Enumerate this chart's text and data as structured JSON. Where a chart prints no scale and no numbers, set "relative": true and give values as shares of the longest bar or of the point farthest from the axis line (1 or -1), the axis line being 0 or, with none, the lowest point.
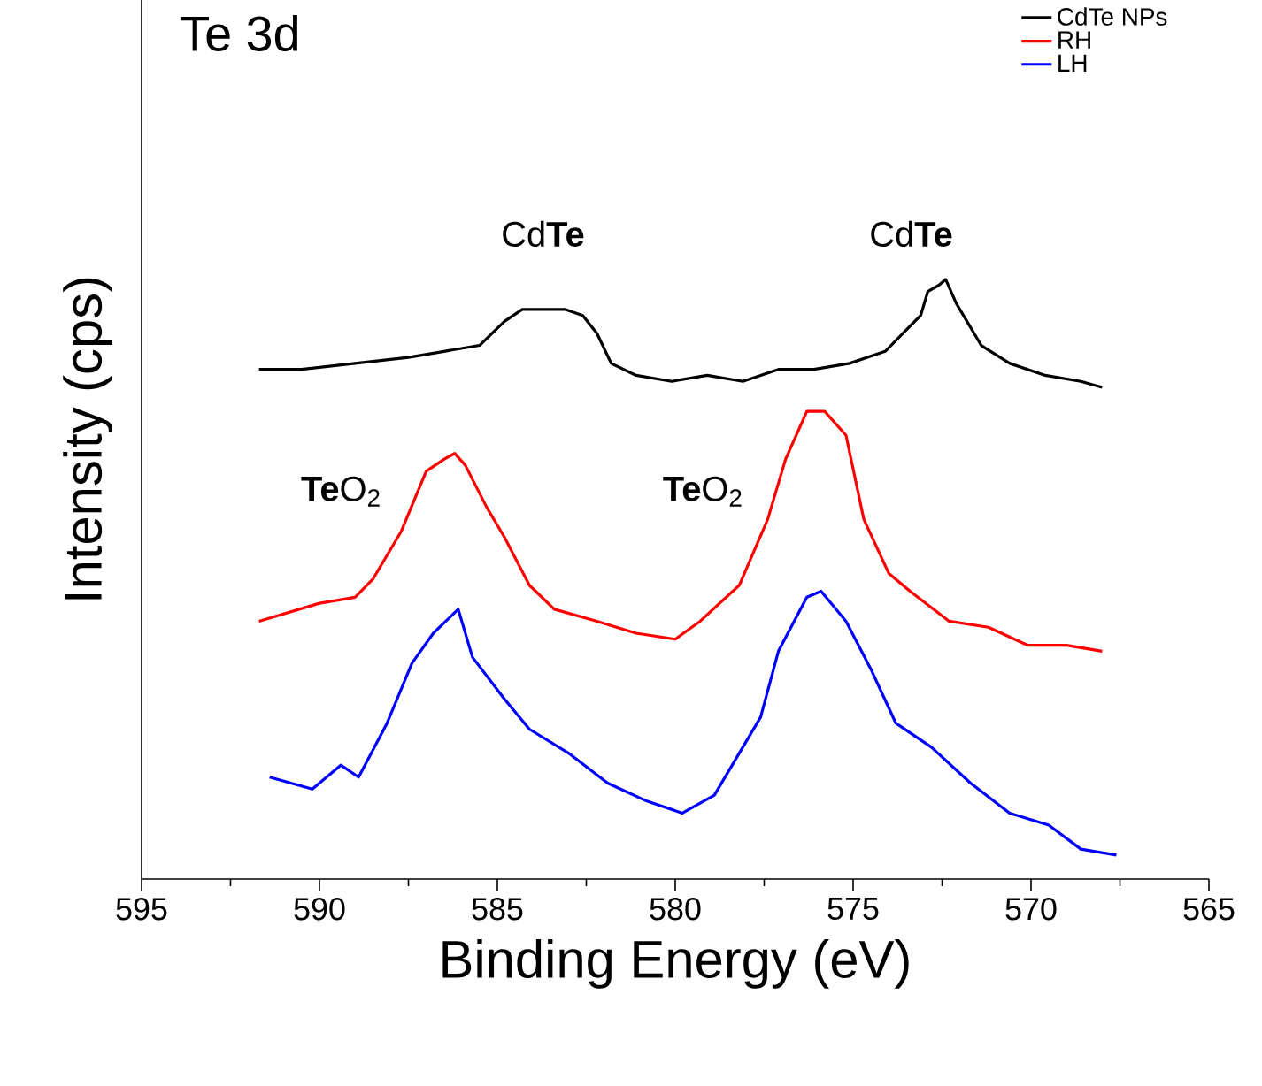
{
  "chart_data": {
    "type": "line",
    "xlabel": "Binding Energy (eV)",
    "ylabel": "Intensity (cps)",
    "relative": true,
    "xlim": [
      595,
      565
    ],
    "xticks": [
      595,
      590,
      585,
      580,
      575,
      570,
      565
    ],
    "legend": "top right",
    "marker": "none",
    "line_style": "solid",
    "annotations": [
      "Te 3d",
      "Cd**Te**",
      "Cd**Te**",
      "**Te**O$_{2}$",
      "**Te**O$_{2}$"
    ],
    "series": [
      {
        "name": "CdTe NPs",
        "color": "#000000",
        "x": [
          591.7,
          590.5,
          589.0,
          587.5,
          586.5,
          585.5,
          584.8,
          584.3,
          583.6,
          583.1,
          582.6,
          582.2,
          581.8,
          581.1,
          580.1,
          579.1,
          578.1,
          577.1,
          576.1,
          575.1,
          574.1,
          573.6,
          573.1,
          572.9,
          572.6,
          572.4,
          572.1,
          571.9,
          571.4,
          570.6,
          569.6,
          568.6,
          568.0
        ],
        "values": [
          0.85,
          0.85,
          0.86,
          0.87,
          0.88,
          0.89,
          0.93,
          0.95,
          0.95,
          0.95,
          0.94,
          0.91,
          0.86,
          0.84,
          0.83,
          0.84,
          0.83,
          0.85,
          0.85,
          0.86,
          0.88,
          0.91,
          0.94,
          0.98,
          0.99,
          1.0,
          0.96,
          0.94,
          0.89,
          0.86,
          0.84,
          0.83,
          0.82
        ]
      },
      {
        "name": "RH",
        "color": "#ff0000",
        "x": [
          591.7,
          590.0,
          589.0,
          588.5,
          587.7,
          587.0,
          586.5,
          586.2,
          585.9,
          585.3,
          584.8,
          584.1,
          583.4,
          582.2,
          581.1,
          580.0,
          579.3,
          578.2,
          577.4,
          576.9,
          576.3,
          575.8,
          575.2,
          574.7,
          574.0,
          573.4,
          572.3,
          571.2,
          570.1,
          569.0,
          568.0
        ],
        "values": [
          0.43,
          0.46,
          0.47,
          0.5,
          0.58,
          0.68,
          0.7,
          0.71,
          0.69,
          0.62,
          0.57,
          0.49,
          0.45,
          0.43,
          0.41,
          0.4,
          0.43,
          0.49,
          0.6,
          0.7,
          0.78,
          0.78,
          0.74,
          0.6,
          0.51,
          0.48,
          0.43,
          0.42,
          0.39,
          0.39,
          0.38
        ]
      },
      {
        "name": "LH",
        "color": "#0000ff",
        "x": [
          591.4,
          590.2,
          589.4,
          588.9,
          588.1,
          587.4,
          586.8,
          586.1,
          585.7,
          584.8,
          584.1,
          583.0,
          581.9,
          580.8,
          579.8,
          578.9,
          578.2,
          577.6,
          577.1,
          576.3,
          575.9,
          575.2,
          574.5,
          573.8,
          572.8,
          571.7,
          570.6,
          569.5,
          568.6,
          567.6
        ],
        "values": [
          0.17,
          0.15,
          0.19,
          0.17,
          0.26,
          0.36,
          0.41,
          0.45,
          0.37,
          0.3,
          0.25,
          0.21,
          0.16,
          0.13,
          0.11,
          0.14,
          0.21,
          0.27,
          0.38,
          0.47,
          0.48,
          0.43,
          0.35,
          0.26,
          0.22,
          0.16,
          0.11,
          0.09,
          0.05,
          0.04
        ]
      }
    ]
  }
}
